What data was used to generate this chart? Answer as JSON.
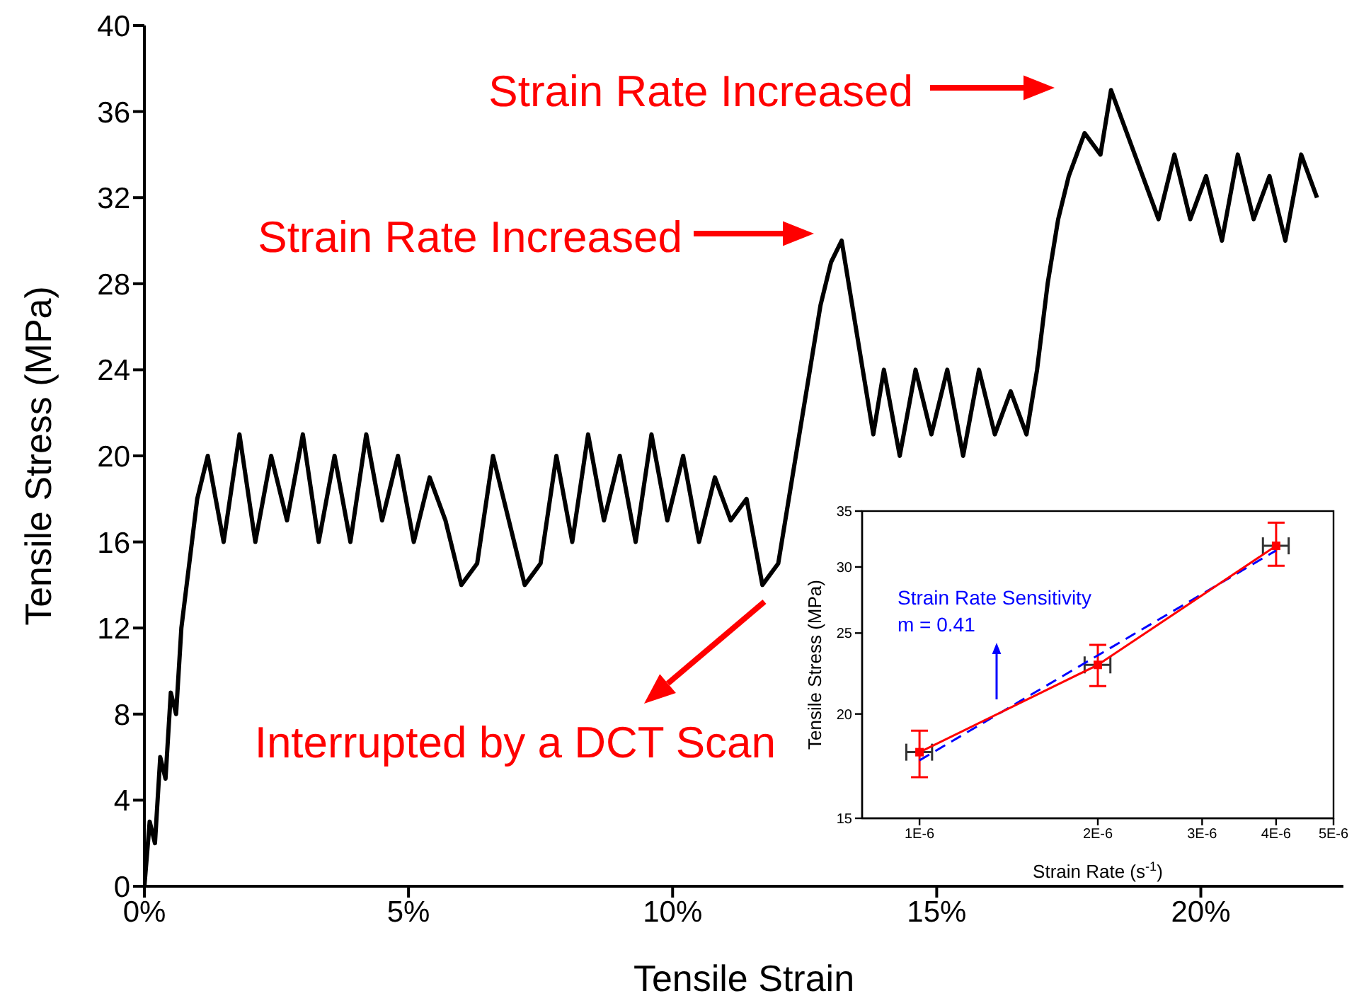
{
  "chart_data": [
    {
      "type": "line",
      "xlabel": "Tensile Strain",
      "ylabel": "Tensile Stress (MPa)",
      "x": [
        0,
        0.1,
        0.2,
        0.3,
        0.4,
        0.5,
        0.6,
        0.7,
        0.8,
        0.9,
        1.0,
        1.2,
        1.5,
        1.8,
        2.1,
        2.4,
        2.7,
        3.0,
        3.3,
        3.6,
        3.9,
        4.2,
        4.5,
        4.8,
        5.1,
        5.4,
        5.7,
        6.0,
        6.3,
        6.6,
        6.9,
        7.2,
        7.5,
        7.8,
        8.1,
        8.4,
        8.7,
        9.0,
        9.3,
        9.6,
        9.9,
        10.2,
        10.5,
        10.8,
        11.1,
        11.4,
        11.7,
        12.0,
        12.2,
        12.4,
        12.6,
        12.8,
        13.0,
        13.2,
        13.4,
        13.6,
        13.8,
        14.0,
        14.3,
        14.6,
        14.9,
        15.2,
        15.5,
        15.8,
        16.1,
        16.4,
        16.7,
        16.9,
        17.1,
        17.3,
        17.5,
        17.8,
        18.1,
        18.3,
        18.6,
        18.9,
        19.2,
        19.5,
        19.8,
        20.1,
        20.4,
        20.7,
        21.0,
        21.3,
        21.6,
        21.9,
        22.2
      ],
      "series": [
        {
          "color": "#000000",
          "values": [
            0,
            3,
            2,
            6,
            5,
            9,
            8,
            12,
            14,
            16,
            18,
            20,
            16,
            21,
            16,
            20,
            17,
            21,
            16,
            20,
            16,
            21,
            17,
            20,
            16,
            19,
            17,
            14,
            15,
            20,
            17,
            14,
            15,
            20,
            16,
            21,
            17,
            20,
            16,
            21,
            17,
            20,
            16,
            19,
            17,
            18,
            14,
            15,
            18,
            21,
            24,
            27,
            29,
            30,
            27,
            24,
            21,
            24,
            20,
            24,
            21,
            24,
            20,
            24,
            21,
            23,
            21,
            24,
            28,
            31,
            33,
            35,
            34,
            37,
            35,
            33,
            31,
            34,
            31,
            33,
            30,
            34,
            31,
            33,
            30,
            34,
            32
          ]
        }
      ],
      "xlim": [
        0,
        22.7
      ],
      "xticks": [
        {
          "value": 0,
          "label": "0%"
        },
        {
          "value": 5,
          "label": "5%"
        },
        {
          "value": 10,
          "label": "10%"
        },
        {
          "value": 15,
          "label": "15%"
        },
        {
          "value": 20,
          "label": "20%"
        }
      ],
      "ylim": [
        0,
        40
      ],
      "yticks": [
        0,
        4,
        8,
        12,
        16,
        20,
        24,
        28,
        32,
        36,
        40
      ],
      "marker": "none",
      "line_style": "solid",
      "annotations": [
        "Strain Rate Increased",
        "Strain Rate Increased",
        "Interrupted by a DCT Scan"
      ]
    },
    {
      "type": "line",
      "xlabel": "Strain Rate (s$^{-1}$)",
      "ylabel": "Tensile Stress (MPa)",
      "log": "xy",
      "series": [
        {
          "color": "#ff0000",
          "marker": "square",
          "line_style": "solid",
          "x": [
            1e-06,
            2e-06,
            4e-06
          ],
          "values": [
            18.0,
            22.9,
            31.8
          ],
          "errors": [
            [
              16.8,
              19.1
            ],
            [
              21.6,
              24.2
            ],
            [
              30.1,
              33.9
            ]
          ],
          "xerrors": [
            5e-08,
            1e-07,
            2e-07
          ]
        },
        {
          "color": "#0000ff",
          "marker": "none",
          "line_style": "dashed",
          "x": [
            1e-06,
            4e-06
          ],
          "values": [
            17.6,
            31.4
          ]
        }
      ],
      "xlim": [
        8e-07,
        5e-06
      ],
      "xticks": [
        {
          "value": 1e-06,
          "label": "1E-6"
        },
        {
          "value": 2e-06,
          "label": "2E-6"
        },
        {
          "value": 3e-06,
          "label": "3E-6"
        },
        {
          "value": 4e-06,
          "label": "4E-6"
        },
        {
          "value": 5e-06,
          "label": "5E-6"
        }
      ],
      "ylim": [
        15,
        35
      ],
      "yticks": [
        15,
        20,
        25,
        30,
        35
      ],
      "annotations": [
        "Strain Rate Sensitivity",
        "m = 0.41"
      ]
    }
  ]
}
